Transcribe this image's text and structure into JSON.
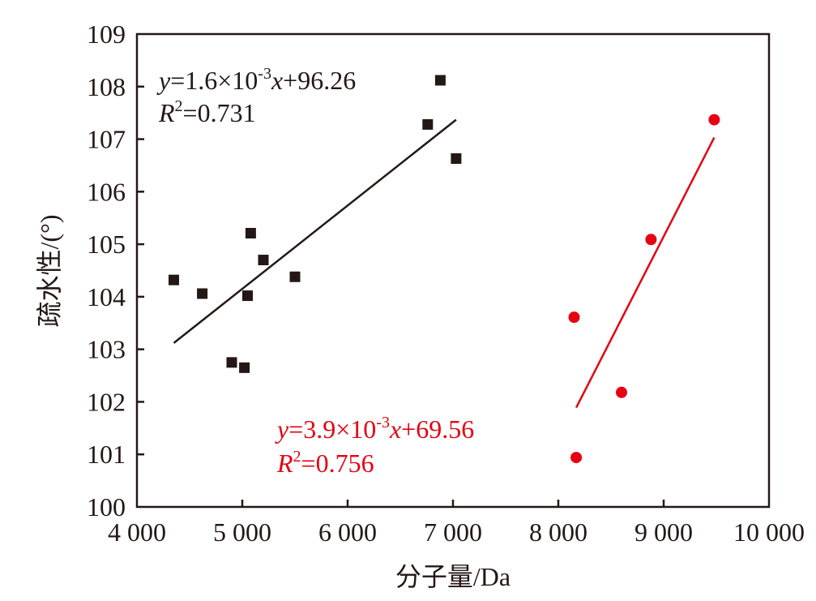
{
  "chart_data": {
    "type": "scatter",
    "xlabel": "分子量/Da",
    "ylabel": "疏水性/(°)",
    "xlim": [
      4000,
      10000
    ],
    "ylim": [
      100,
      109
    ],
    "xticks": [
      4000,
      5000,
      6000,
      7000,
      8000,
      9000,
      10000
    ],
    "xtick_labels": [
      "4 000",
      "5 000",
      "6 000",
      "7 000",
      "8 000",
      "9 000",
      "10 000"
    ],
    "yticks": [
      100,
      101,
      102,
      103,
      104,
      105,
      106,
      107,
      108,
      109
    ],
    "ytick_labels": [
      "100",
      "101",
      "102",
      "103",
      "104",
      "105",
      "106",
      "107",
      "108",
      "109"
    ],
    "grid": false,
    "series": [
      {
        "marker": "square",
        "color": "#231815",
        "points": [
          {
            "x": 4350,
            "y": 104.32
          },
          {
            "x": 4620,
            "y": 104.06
          },
          {
            "x": 4900,
            "y": 102.75
          },
          {
            "x": 5020,
            "y": 102.65
          },
          {
            "x": 5050,
            "y": 104.02
          },
          {
            "x": 5080,
            "y": 105.21
          },
          {
            "x": 5200,
            "y": 104.7
          },
          {
            "x": 5500,
            "y": 104.38
          },
          {
            "x": 6760,
            "y": 107.28
          },
          {
            "x": 6880,
            "y": 108.12
          },
          {
            "x": 7030,
            "y": 106.63
          }
        ],
        "fit": {
          "x_start": 4350,
          "x_end": 7030,
          "y_start": 103.12,
          "y_end": 107.37
        },
        "equation": {
          "y_var": "y",
          "eq_body": "=1.6×10",
          "exponent": "-3",
          "x_var": "x",
          "eq_tail": "+96.26",
          "r_var": "R",
          "r_exp": "2",
          "r_value": "=0.731"
        }
      },
      {
        "marker": "circle",
        "color": "#e60012",
        "points": [
          {
            "x": 8150,
            "y": 103.61
          },
          {
            "x": 8170,
            "y": 100.94
          },
          {
            "x": 8600,
            "y": 102.18
          },
          {
            "x": 8880,
            "y": 105.09
          },
          {
            "x": 9480,
            "y": 107.37
          }
        ],
        "fit": {
          "x_start": 8170,
          "x_end": 9480,
          "y_start": 101.89,
          "y_end": 107.03
        },
        "equation": {
          "y_var": "y",
          "eq_body": "=3.9×10",
          "exponent": "-3",
          "x_var": "x",
          "eq_tail": "+69.56",
          "r_var": "R",
          "r_exp": "2",
          "r_value": "=0.756"
        }
      }
    ]
  }
}
